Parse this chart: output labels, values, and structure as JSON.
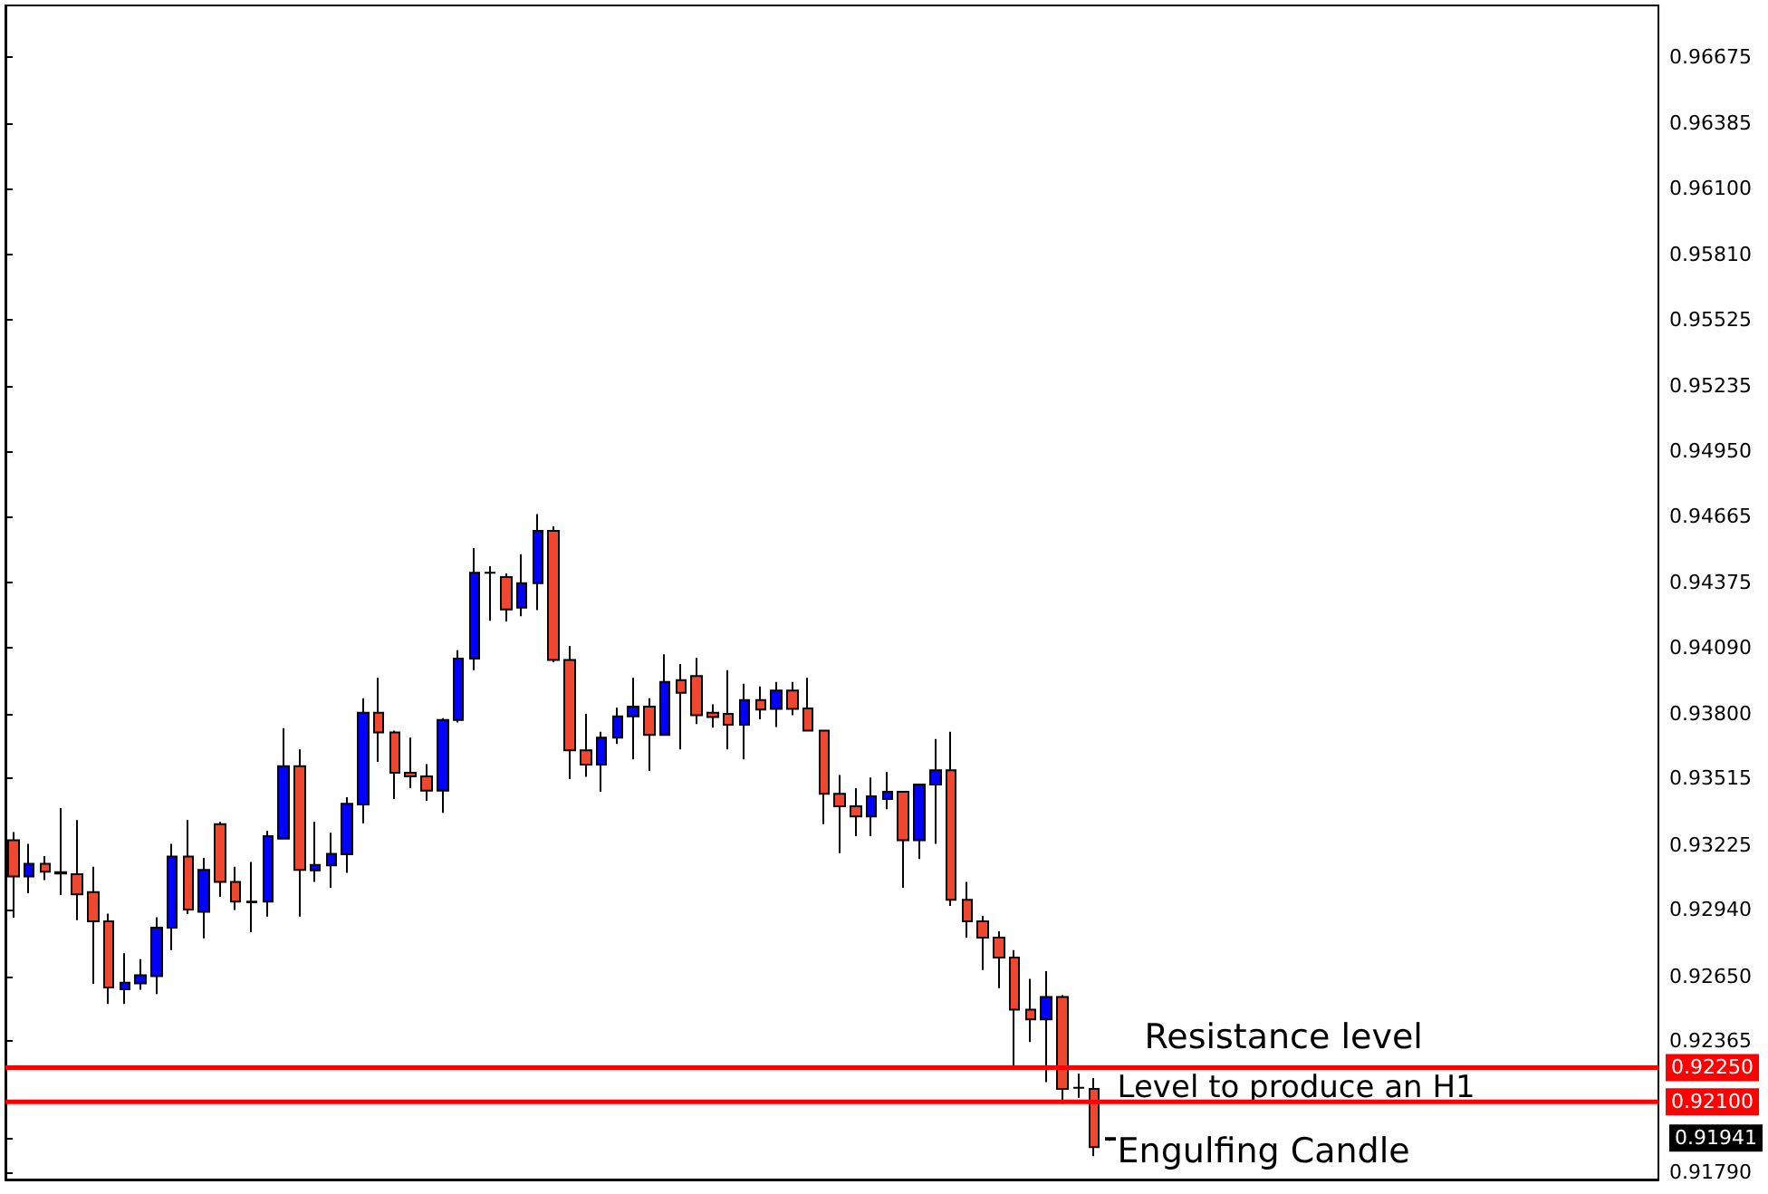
{
  "chart_data": {
    "type": "candlestick",
    "categories": [
      null,
      null,
      null,
      null,
      null,
      null,
      null,
      null,
      null,
      null,
      null,
      null,
      null,
      null,
      null,
      null,
      null,
      null,
      null,
      null,
      null,
      null,
      null,
      null,
      null,
      null,
      null,
      null,
      null,
      null,
      null,
      null,
      null,
      null,
      null,
      null,
      null,
      null,
      null,
      null,
      null,
      null,
      null,
      null,
      null,
      null,
      null,
      null,
      null,
      null,
      null,
      null,
      null,
      null,
      null,
      null,
      null,
      null,
      null,
      null,
      null,
      null,
      null,
      null,
      null,
      null,
      null,
      null,
      null,
      null,
      null,
      null,
      null,
      null,
      null,
      null,
      null,
      null,
      null,
      null,
      null,
      null,
      null,
      null,
      null,
      null,
      null,
      null,
      null,
      null,
      null,
      null,
      null,
      null,
      null,
      null,
      null,
      null,
      null,
      null,
      null,
      null,
      null,
      null
    ],
    "ohlc": [
      [
        0.93245,
        0.93281,
        0.92906,
        0.93087
      ],
      [
        0.93087,
        0.93229,
        0.93013,
        0.93142
      ],
      [
        0.93142,
        0.93176,
        0.93071,
        0.93107
      ],
      [
        0.93105,
        0.93386,
        0.93005,
        0.931
      ],
      [
        0.93097,
        0.93334,
        0.92895,
        0.93008
      ],
      [
        0.93018,
        0.93129,
        0.92617,
        0.9289
      ],
      [
        0.9289,
        0.92924,
        0.92528,
        0.92601
      ],
      [
        0.92593,
        0.92751,
        0.92528,
        0.92622
      ],
      [
        0.92619,
        0.92725,
        0.92591,
        0.92654
      ],
      [
        0.9265,
        0.92908,
        0.92572,
        0.92863
      ],
      [
        0.92863,
        0.93229,
        0.92764,
        0.93174
      ],
      [
        0.93174,
        0.93334,
        0.92922,
        0.92942
      ],
      [
        0.92932,
        0.93168,
        0.92816,
        0.93115
      ],
      [
        0.93316,
        0.93326,
        0.92997,
        0.93063
      ],
      [
        0.93063,
        0.93129,
        0.9294,
        0.92977
      ],
      [
        0.92974,
        0.9315,
        0.92843,
        0.92977
      ],
      [
        0.92977,
        0.93286,
        0.92911,
        0.93263
      ],
      [
        0.93252,
        0.93736,
        0.93252,
        0.9357
      ],
      [
        0.9357,
        0.93643,
        0.92911,
        0.93115
      ],
      [
        0.93113,
        0.93326,
        0.93063,
        0.93137
      ],
      [
        0.93135,
        0.93278,
        0.93037,
        0.93186
      ],
      [
        0.93184,
        0.93434,
        0.93103,
        0.93405
      ],
      [
        0.93402,
        0.93867,
        0.9332,
        0.93804
      ],
      [
        0.93804,
        0.93956,
        0.93588,
        0.93717
      ],
      [
        0.93717,
        0.93725,
        0.93426,
        0.93541
      ],
      [
        0.93541,
        0.93694,
        0.93473,
        0.93525
      ],
      [
        0.93525,
        0.93578,
        0.93418,
        0.93462
      ],
      [
        0.93462,
        0.9378,
        0.93365,
        0.93772
      ],
      [
        0.93772,
        0.94077,
        0.93761,
        0.9404
      ],
      [
        0.9404,
        0.94524,
        0.9399,
        0.94416
      ],
      [
        0.94416,
        0.94445,
        0.94206,
        0.94416
      ],
      [
        0.94397,
        0.94413,
        0.94203,
        0.94256
      ],
      [
        0.94264,
        0.94498,
        0.94226,
        0.94371
      ],
      [
        0.94371,
        0.94673,
        0.94253,
        0.946
      ],
      [
        0.946,
        0.9462,
        0.94025,
        0.94035
      ],
      [
        0.94035,
        0.94096,
        0.93513,
        0.93639
      ],
      [
        0.93639,
        0.93799,
        0.93523,
        0.93576
      ],
      [
        0.93576,
        0.9372,
        0.93457,
        0.93694
      ],
      [
        0.93694,
        0.93825,
        0.93667,
        0.93788
      ],
      [
        0.93788,
        0.93956,
        0.93599,
        0.9383
      ],
      [
        0.9383,
        0.93867,
        0.93549,
        0.93706
      ],
      [
        0.93706,
        0.94059,
        0.93706,
        0.93938
      ],
      [
        0.93946,
        0.94017,
        0.93643,
        0.93891
      ],
      [
        0.93964,
        0.94043,
        0.93754,
        0.93793
      ],
      [
        0.93804,
        0.9384,
        0.93738,
        0.93785
      ],
      [
        0.93799,
        0.9399,
        0.93643,
        0.93751
      ],
      [
        0.93751,
        0.9393,
        0.93599,
        0.93859
      ],
      [
        0.93859,
        0.93919,
        0.93775,
        0.93817
      ],
      [
        0.9382,
        0.93938,
        0.93741,
        0.93901
      ],
      [
        0.93901,
        0.93938,
        0.93793,
        0.9382
      ],
      [
        0.93822,
        0.93956,
        0.93725,
        0.93725
      ],
      [
        0.93725,
        0.93725,
        0.93316,
        0.93449
      ],
      [
        0.93449,
        0.93531,
        0.93189,
        0.93394
      ],
      [
        0.93394,
        0.93473,
        0.93263,
        0.93349
      ],
      [
        0.93349,
        0.9352,
        0.93263,
        0.93438
      ],
      [
        0.93426,
        0.93544,
        0.93381,
        0.93457
      ],
      [
        0.93457,
        0.93457,
        0.93037,
        0.93245
      ],
      [
        0.93245,
        0.93489,
        0.93163,
        0.93489
      ],
      [
        0.93489,
        0.93688,
        0.93229,
        0.93552
      ],
      [
        0.93552,
        0.9372,
        0.92958,
        0.92985
      ],
      [
        0.92985,
        0.93063,
        0.92819,
        0.9289
      ],
      [
        0.9289,
        0.92914,
        0.92677,
        0.92819
      ],
      [
        0.92819,
        0.92847,
        0.92598,
        0.92732
      ],
      [
        0.92732,
        0.92764,
        0.92256,
        0.92504
      ],
      [
        0.92504,
        0.92638,
        0.92362,
        0.92461
      ],
      [
        0.92461,
        0.92672,
        0.92186,
        0.92559
      ],
      [
        0.92559,
        0.92567,
        0.92091,
        0.92157
      ],
      [
        0.92162,
        0.92223,
        0.92118,
        0.92162
      ],
      [
        0.92157,
        0.92204,
        0.91862,
        0.91902
      ],
      [
        0.91935,
        0.91945,
        0.9193,
        0.91941
      ],
      null,
      null,
      null,
      null,
      null,
      null,
      null,
      null,
      null,
      null,
      null,
      null,
      null,
      null,
      null,
      null,
      null,
      null,
      null,
      null,
      null,
      null,
      null,
      null,
      null,
      null,
      null,
      null,
      null,
      null,
      null,
      null,
      null,
      null
    ],
    "colors": [
      "#f04830",
      "#0000ff",
      "#f04830",
      "#000000",
      "#f04830",
      "#f04830",
      "#f04830",
      "#0000ff",
      "#0000ff",
      "#0000ff",
      "#0000ff",
      "#f04830",
      "#0000ff",
      "#f04830",
      "#f04830",
      "#000000",
      "#0000ff",
      "#0000ff",
      "#f04830",
      "#0000ff",
      "#0000ff",
      "#0000ff",
      "#0000ff",
      "#f04830",
      "#f04830",
      "#f04830",
      "#f04830",
      "#0000ff",
      "#0000ff",
      "#0000ff",
      "#000000",
      "#f04830",
      "#0000ff",
      "#0000ff",
      "#f04830",
      "#f04830",
      "#f04830",
      "#0000ff",
      "#0000ff",
      "#0000ff",
      "#f04830",
      "#0000ff",
      "#f04830",
      "#f04830",
      "#f04830",
      "#f04830",
      "#0000ff",
      "#f04830",
      "#0000ff",
      "#f04830",
      "#f04830",
      "#f04830",
      "#f04830",
      "#f04830",
      "#0000ff",
      "#0000ff",
      "#f04830",
      "#0000ff",
      "#0000ff",
      "#f04830",
      "#f04830",
      "#f04830",
      "#f04830",
      "#f04830",
      "#f04830",
      "#0000ff",
      "#f04830",
      "#000000",
      "#f04830",
      "#0000ff",
      null,
      null,
      null,
      null,
      null,
      null,
      null,
      null,
      null,
      null,
      null,
      null,
      null,
      null,
      null,
      null,
      null,
      null,
      null,
      null,
      null,
      null,
      null,
      null,
      null,
      null,
      null,
      null,
      null,
      null,
      null,
      null,
      null,
      null
    ],
    "ylim": [
      0.9176,
      0.969
    ],
    "yticks": [
      {
        "value": 0.96675,
        "label": "0.96675"
      },
      {
        "value": 0.96385,
        "label": "0.96385"
      },
      {
        "value": 0.961,
        "label": "0.96100"
      },
      {
        "value": 0.9581,
        "label": "0.95810"
      },
      {
        "value": 0.95525,
        "label": "0.95525"
      },
      {
        "value": 0.95235,
        "label": "0.95235"
      },
      {
        "value": 0.9495,
        "label": "0.94950"
      },
      {
        "value": 0.94665,
        "label": "0.94665"
      },
      {
        "value": 0.94375,
        "label": "0.94375"
      },
      {
        "value": 0.9409,
        "label": "0.94090"
      },
      {
        "value": 0.938,
        "label": "0.93800"
      },
      {
        "value": 0.93515,
        "label": "0.93515"
      },
      {
        "value": 0.93225,
        "label": "0.93225"
      },
      {
        "value": 0.9294,
        "label": "0.92940"
      },
      {
        "value": 0.9265,
        "label": "0.92650"
      },
      {
        "value": 0.92365,
        "label": "0.92365"
      },
      {
        "value": 0.91941,
        "label": "0.91941"
      },
      {
        "value": 0.9179,
        "label": "0.91790"
      }
    ],
    "ref_lines": [
      {
        "axis": "y",
        "value": 0.9225,
        "label": "0.92250",
        "color": "#ff0000"
      },
      {
        "axis": "y",
        "value": 0.921,
        "label": "0.92100",
        "color": "#ff0000"
      }
    ],
    "annotations": [
      "Resistance level",
      "Level to produce an H1",
      "Engulfing Candle"
    ]
  }
}
